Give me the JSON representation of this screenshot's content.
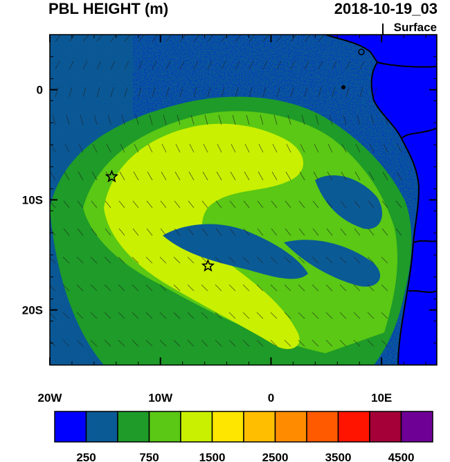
{
  "header": {
    "title": "PBL HEIGHT (m)",
    "timestamp": "2018-10-19_03",
    "level": "Surface"
  },
  "map": {
    "lon_range": [
      -20,
      15
    ],
    "lat_range": [
      -25,
      5
    ],
    "lon_ticks": [
      {
        "value": -20,
        "label": "20W"
      },
      {
        "value": -10,
        "label": "10W"
      },
      {
        "value": 0,
        "label": "0"
      },
      {
        "value": 10,
        "label": "10E"
      }
    ],
    "lat_ticks": [
      {
        "value": 0,
        "label": "0"
      },
      {
        "value": -10,
        "label": "10S"
      },
      {
        "value": -20,
        "label": "20S"
      }
    ],
    "station_markers": [
      {
        "lon": -14.4,
        "lat": -7.9
      },
      {
        "lon": -5.7,
        "lat": -16.0
      }
    ]
  },
  "colorbar": {
    "colors": [
      "#0000ff",
      "#0a5a96",
      "#1e9b28",
      "#5ac814",
      "#c8f000",
      "#ffe600",
      "#ffbe00",
      "#ff8c00",
      "#ff5a00",
      "#ff1400",
      "#a50037",
      "#6e0096"
    ],
    "labels": [
      {
        "index": 1,
        "text": "250"
      },
      {
        "index": 3,
        "text": "750"
      },
      {
        "index": 5,
        "text": "1500"
      },
      {
        "index": 7,
        "text": "2500"
      },
      {
        "index": 9,
        "text": "3500"
      },
      {
        "index": 11,
        "text": "4500"
      }
    ]
  }
}
